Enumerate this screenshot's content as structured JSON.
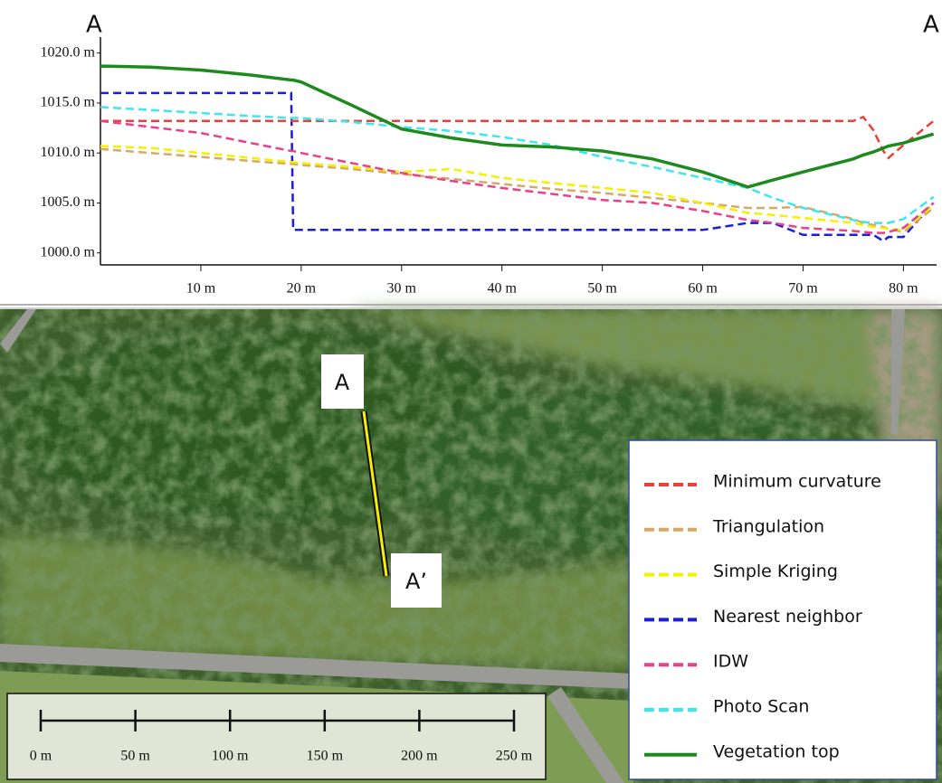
{
  "chart_data": {
    "type": "line",
    "annotations": [
      "A",
      "A"
    ],
    "x": [
      0,
      5,
      10,
      15,
      19,
      19.2,
      20,
      25,
      30,
      35,
      40,
      45,
      50,
      55,
      60,
      64.5,
      67,
      70,
      75,
      76,
      77,
      78,
      78.5,
      80,
      83
    ],
    "xlim": [
      0,
      83.3
    ],
    "xticks": [
      {
        "value": 10,
        "label": "10 m"
      },
      {
        "value": 20,
        "label": "20 m"
      },
      {
        "value": 30,
        "label": "30 m"
      },
      {
        "value": 40,
        "label": "40 m"
      },
      {
        "value": 50,
        "label": "50 m"
      },
      {
        "value": 60,
        "label": "60 m"
      },
      {
        "value": 70,
        "label": "70 m"
      },
      {
        "value": 80,
        "label": "80 m"
      }
    ],
    "ylim": [
      998.8,
      1021.6
    ],
    "yticks": [
      {
        "value": 1000,
        "label": "1000.0 m"
      },
      {
        "value": 1005,
        "label": "1005.0 m"
      },
      {
        "value": 1010,
        "label": "1010.0 m"
      },
      {
        "value": 1015,
        "label": "1015.0 m"
      },
      {
        "value": 1020,
        "label": "1020.0 m"
      }
    ],
    "grid": false,
    "series": [
      {
        "name": "Minimum curvature",
        "color": "#e8413c",
        "style": "dashed",
        "values": [
          1013.2,
          1013.2,
          1013.2,
          1013.2,
          1013.2,
          1013.2,
          1013.2,
          1013.2,
          1013.2,
          1013.2,
          1013.2,
          1013.2,
          1013.2,
          1013.2,
          1013.2,
          1013.2,
          1013.2,
          1013.2,
          1013.2,
          1013.6,
          1012.3,
          1010.2,
          1009.5,
          1010.8,
          1013.2
        ]
      },
      {
        "name": "Triangulation",
        "color": "#d8a86a",
        "style": "dashed",
        "values": [
          1010.4,
          1010,
          1009.6,
          1009.2,
          1008.9,
          1008.9,
          1008.8,
          1008.4,
          1007.9,
          1007.4,
          1006.9,
          1006.4,
          1006,
          1005.5,
          1005,
          1004.5,
          1004.5,
          1004.6,
          1003.4,
          1003,
          1002.8,
          1002.6,
          1002.4,
          1002.1,
          1004.5
        ]
      },
      {
        "name": "Simple Kriging",
        "color": "#f2f200",
        "style": "dashed",
        "values": [
          1010.7,
          1010.5,
          1010,
          1009.5,
          1009.1,
          1009.1,
          1009,
          1008.6,
          1008.1,
          1008.4,
          1007.5,
          1007,
          1006.5,
          1006,
          1005,
          1004,
          1003.8,
          1003.5,
          1003,
          1002.8,
          1002.6,
          1002.5,
          1002.4,
          1002.3,
          1004.8
        ]
      },
      {
        "name": "Nearest neighbor",
        "color": "#1c1ce0",
        "style": "dashed",
        "values": [
          1016,
          1016,
          1016,
          1016,
          1016,
          1002.3,
          1002.3,
          1002.3,
          1002.3,
          1002.3,
          1002.3,
          1002.3,
          1002.3,
          1002.3,
          1002.3,
          1003,
          1003,
          1001.8,
          1001.8,
          1001.8,
          1001.8,
          1001.2,
          1001.6,
          1001.6,
          1005
        ]
      },
      {
        "name": "IDW",
        "color": "#ec3f8a",
        "style": "dashed",
        "values": [
          1013.2,
          1012.6,
          1012,
          1011,
          1010.2,
          1010.2,
          1010,
          1009,
          1008,
          1007.2,
          1006.5,
          1005.9,
          1005.3,
          1005,
          1004.2,
          1003.3,
          1003,
          1002.5,
          1002.2,
          1002.1,
          1002,
          1002,
          1002.1,
          1002.5,
          1005
        ]
      },
      {
        "name": "Photo Scan",
        "color": "#3ee6ee",
        "style": "dashed",
        "values": [
          1014.6,
          1014.3,
          1014,
          1013.7,
          1013.5,
          1013.5,
          1013.5,
          1013.1,
          1012.6,
          1012.2,
          1011.6,
          1010.8,
          1009.6,
          1008.6,
          1007.5,
          1006.5,
          1005.5,
          1004.5,
          1003.3,
          1003.1,
          1003,
          1003,
          1003,
          1003.4,
          1005.6
        ]
      },
      {
        "name": "Vegetation top",
        "color": "#1e8a1e",
        "style": "solid",
        "values": [
          1018.7,
          1018.6,
          1018.3,
          1017.8,
          1017.3,
          1017.3,
          1017.1,
          1014.8,
          1012.4,
          1011.5,
          1010.8,
          1010.6,
          1010.2,
          1009.4,
          1008.1,
          1006.6,
          1007.3,
          1008.1,
          1009.4,
          1009.8,
          1010.1,
          1010.5,
          1010.7,
          1011,
          1011.9
        ]
      }
    ]
  },
  "map": {
    "labels": [
      "A",
      "A’"
    ],
    "scale_bar": {
      "range": [
        0,
        250
      ],
      "ticks": [
        {
          "value": 0,
          "label": "0 m"
        },
        {
          "value": 50,
          "label": "50 m"
        },
        {
          "value": 100,
          "label": "100 m"
        },
        {
          "value": 150,
          "label": "150 m"
        },
        {
          "value": 200,
          "label": "200 m"
        },
        {
          "value": 250,
          "label": "250 m"
        }
      ]
    }
  }
}
